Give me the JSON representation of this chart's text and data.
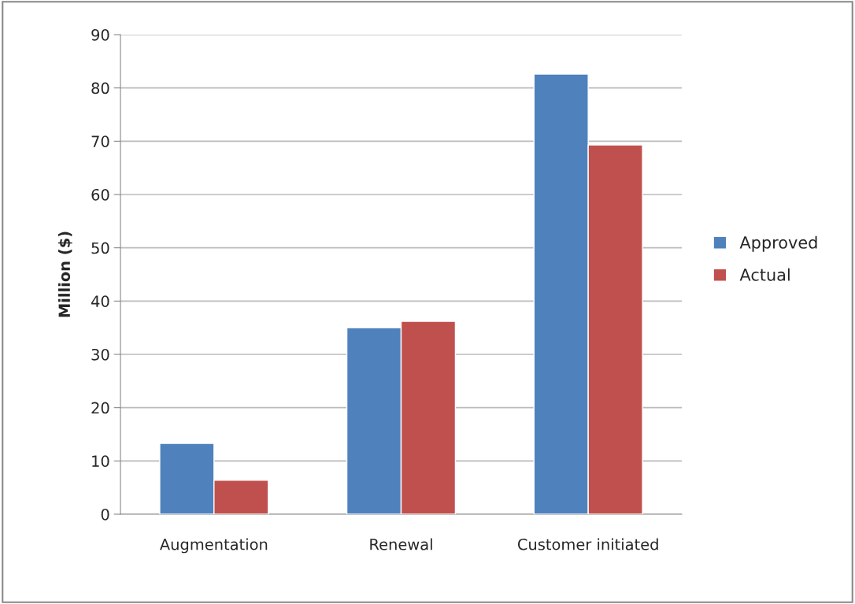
{
  "chart_data": {
    "type": "bar",
    "ylabel": "Million ($)",
    "categories": [
      "Augmentation",
      "Renewal",
      "Customer initiated"
    ],
    "series": [
      {
        "name": "Approved",
        "color": "#4f81bd",
        "values": [
          13.3,
          35.0,
          82.6
        ]
      },
      {
        "name": "Actual",
        "color": "#c0504d",
        "values": [
          6.4,
          36.2,
          69.3
        ]
      }
    ],
    "ylim": [
      0,
      90
    ],
    "yticks": [
      0,
      10,
      20,
      30,
      40,
      50,
      60,
      70,
      80,
      90
    ],
    "grid": "y",
    "legend": "right"
  }
}
